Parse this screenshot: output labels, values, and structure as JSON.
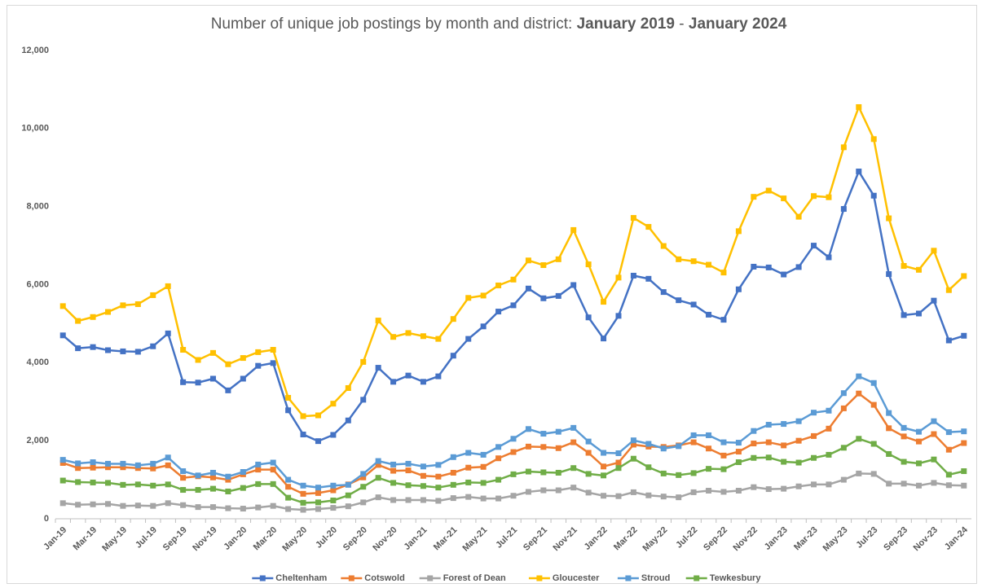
{
  "chart_data": {
    "type": "line",
    "title": [
      {
        "text": "Number of unique job postings by month and district: ",
        "bold": false
      },
      {
        "text": "January 2019",
        "bold": true
      },
      {
        "text": " - ",
        "bold": false
      },
      {
        "text": "January 2024",
        "bold": true
      }
    ],
    "categories": [
      "Jan-19",
      null,
      "Mar-19",
      null,
      "May-19",
      null,
      "Jul-19",
      null,
      "Sep-19",
      null,
      "Nov-19",
      null,
      "Jan-20",
      null,
      "Mar-20",
      null,
      "May-20",
      null,
      "Jul-20",
      null,
      "Sep-20",
      null,
      "Nov-20",
      null,
      "Jan-21",
      null,
      "Mar-21",
      null,
      "May-21",
      null,
      "Jul-21",
      null,
      "Sep-21",
      null,
      "Nov-21",
      null,
      "Jan-22",
      null,
      "Mar-22",
      null,
      "May-22",
      null,
      "Jul-22",
      null,
      "Sep-22",
      null,
      "Nov-22",
      null,
      "Jan-23",
      null,
      "Mar-23",
      null,
      "May-23",
      null,
      "Jul-23",
      null,
      "Sep-23",
      null,
      "Nov-23",
      null,
      "Jan-24"
    ],
    "series": [
      {
        "name": "Cheltenham",
        "color": "#4472c4",
        "values": [
          4700,
          4370,
          4400,
          4320,
          4290,
          4280,
          4420,
          4750,
          3500,
          3490,
          3590,
          3290,
          3590,
          3920,
          3990,
          2780,
          2160,
          1990,
          2150,
          2520,
          3050,
          3870,
          3510,
          3670,
          3510,
          3650,
          4180,
          4610,
          4930,
          5310,
          5470,
          5900,
          5650,
          5710,
          5990,
          5160,
          4620,
          5200,
          6230,
          6150,
          5810,
          5600,
          5490,
          5230,
          5100,
          5880,
          6460,
          6440,
          6260,
          6450,
          7000,
          6700,
          7940,
          8900,
          8280,
          6270,
          5220,
          5260,
          5590,
          4570,
          4690
        ]
      },
      {
        "name": "Cotswold",
        "color": "#ed7d31",
        "values": [
          1430,
          1300,
          1310,
          1320,
          1320,
          1300,
          1290,
          1370,
          1050,
          1090,
          1060,
          1000,
          1140,
          1260,
          1260,
          820,
          640,
          660,
          730,
          880,
          1060,
          1380,
          1230,
          1240,
          1100,
          1080,
          1180,
          1310,
          1330,
          1550,
          1710,
          1850,
          1840,
          1810,
          1960,
          1690,
          1340,
          1440,
          1900,
          1850,
          1840,
          1880,
          1960,
          1800,
          1620,
          1720,
          1930,
          1960,
          1880,
          2000,
          2120,
          2310,
          2830,
          3210,
          2920,
          2320,
          2110,
          1980,
          2170,
          1770,
          1940
        ]
      },
      {
        "name": "Forest of Dean",
        "color": "#a5a5a5",
        "values": [
          400,
          360,
          370,
          380,
          330,
          340,
          330,
          400,
          350,
          300,
          300,
          270,
          260,
          290,
          330,
          250,
          230,
          250,
          280,
          320,
          420,
          550,
          480,
          480,
          480,
          460,
          530,
          560,
          520,
          520,
          590,
          690,
          730,
          730,
          800,
          670,
          590,
          580,
          680,
          600,
          570,
          550,
          680,
          720,
          690,
          720,
          810,
          760,
          770,
          830,
          880,
          880,
          1000,
          1160,
          1150,
          900,
          900,
          850,
          920,
          860,
          850
        ]
      },
      {
        "name": "Gloucester",
        "color": "#ffc000",
        "values": [
          5450,
          5070,
          5170,
          5300,
          5470,
          5500,
          5730,
          5960,
          4330,
          4070,
          4250,
          3960,
          4120,
          4270,
          4330,
          3100,
          2630,
          2650,
          2950,
          3350,
          4020,
          5080,
          4660,
          4760,
          4680,
          4610,
          5120,
          5660,
          5720,
          5980,
          6130,
          6620,
          6500,
          6650,
          7400,
          6520,
          5560,
          6180,
          7710,
          7480,
          6990,
          6650,
          6600,
          6510,
          6310,
          7370,
          8250,
          8410,
          8210,
          7740,
          8270,
          8240,
          9520,
          10550,
          9730,
          7700,
          6480,
          6380,
          6870,
          5860,
          6220
        ]
      },
      {
        "name": "Stroud",
        "color": "#5b9bd5",
        "values": [
          1510,
          1420,
          1450,
          1410,
          1410,
          1370,
          1410,
          1570,
          1220,
          1110,
          1180,
          1080,
          1200,
          1390,
          1440,
          1000,
          850,
          800,
          850,
          870,
          1150,
          1480,
          1390,
          1410,
          1340,
          1380,
          1580,
          1690,
          1640,
          1840,
          2050,
          2300,
          2180,
          2230,
          2330,
          1980,
          1690,
          1680,
          2010,
          1920,
          1800,
          1860,
          2140,
          2140,
          1960,
          1950,
          2250,
          2410,
          2430,
          2500,
          2720,
          2770,
          3220,
          3650,
          3480,
          2710,
          2330,
          2230,
          2500,
          2220,
          2240
        ]
      },
      {
        "name": "Tewkesbury",
        "color": "#70ad47",
        "values": [
          980,
          940,
          930,
          920,
          870,
          880,
          850,
          880,
          740,
          740,
          770,
          700,
          790,
          890,
          890,
          540,
          410,
          420,
          470,
          600,
          820,
          1050,
          920,
          860,
          840,
          800,
          870,
          930,
          920,
          1000,
          1140,
          1210,
          1190,
          1180,
          1300,
          1150,
          1110,
          1300,
          1540,
          1320,
          1160,
          1120,
          1170,
          1280,
          1270,
          1450,
          1560,
          1570,
          1460,
          1440,
          1560,
          1640,
          1820,
          2050,
          1920,
          1660,
          1460,
          1420,
          1520,
          1130,
          1220
        ]
      }
    ],
    "ylim": [
      0,
      12000
    ],
    "yticks": [
      0,
      {
        "value": 2000,
        "label": "2,000"
      },
      {
        "value": 4000,
        "label": "4,000"
      },
      {
        "value": 6000,
        "label": "6,000"
      },
      {
        "value": 8000,
        "label": "8,000"
      },
      {
        "value": 10000,
        "label": "10,000"
      },
      {
        "value": 12000,
        "label": "12,000"
      }
    ],
    "grid": false,
    "legend": "bottom"
  }
}
